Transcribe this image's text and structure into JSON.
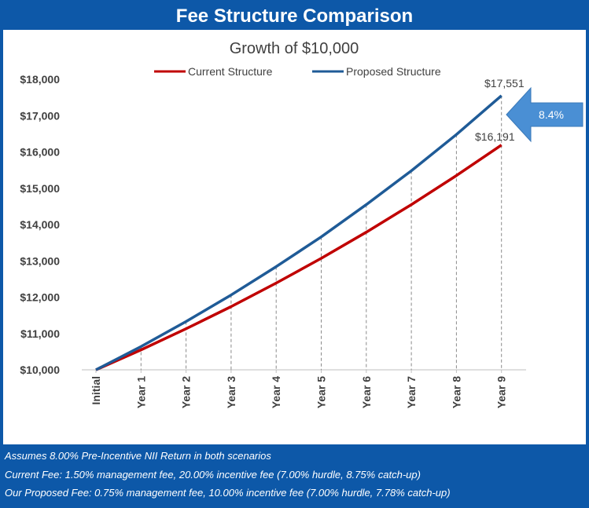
{
  "header": {
    "title": "Fee Structure Comparison"
  },
  "footer": {
    "notes": [
      "Assumes 8.00% Pre-Incentive NII Return in both scenarios",
      "Current Fee: 1.50% management fee, 20.00% incentive fee (7.00% hurdle, 8.75% catch-up)",
      "Our Proposed Fee: 0.75% management fee, 10.00% incentive fee (7.00% hurdle, 7.78% catch-up)"
    ]
  },
  "colors": {
    "frame": "#0d58a8",
    "current": "#c00000",
    "proposed": "#1f5b97",
    "arrow": "#4a8fd4"
  },
  "chart_data": {
    "type": "line",
    "title": "Growth of $10,000",
    "categories": [
      "Initial",
      "Year 1",
      "Year 2",
      "Year 3",
      "Year 4",
      "Year 5",
      "Year 6",
      "Year 7",
      "Year 8",
      "Year 9"
    ],
    "series": [
      {
        "name": "Current Structure",
        "color": "#c00000",
        "values": [
          10000,
          10550,
          11130,
          11740,
          12390,
          13070,
          13790,
          14550,
          15350,
          16191
        ]
      },
      {
        "name": "Proposed Structure",
        "color": "#1f5b97",
        "values": [
          10000,
          10640,
          11330,
          12060,
          12840,
          13660,
          14550,
          15480,
          16480,
          17551
        ]
      }
    ],
    "ylim": [
      10000,
      18000
    ],
    "yticks": [
      10000,
      11000,
      12000,
      13000,
      14000,
      15000,
      16000,
      17000,
      18000
    ],
    "ytick_labels": [
      "$10,000",
      "$11,000",
      "$12,000",
      "$13,000",
      "$14,000",
      "$15,000",
      "$16,000",
      "$17,000",
      "$18,000"
    ],
    "legend_position": "top",
    "end_labels": {
      "current": "$16,191",
      "proposed": "$17,551"
    },
    "callout": "8.4%"
  }
}
